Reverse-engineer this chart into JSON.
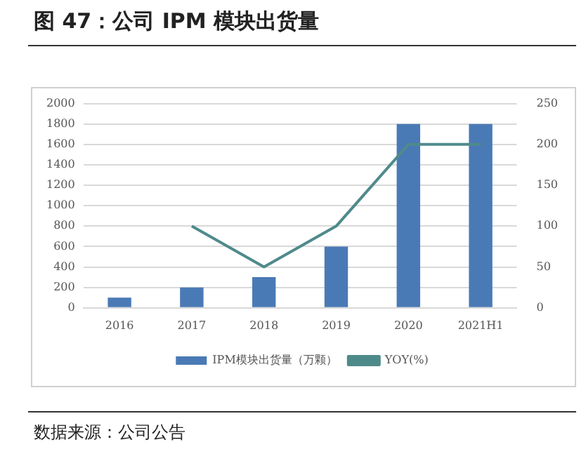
{
  "chart_data": {
    "type": "bar",
    "title": "图 47：公司 IPM 模块出货量",
    "categories": [
      "2016",
      "2017",
      "2018",
      "2019",
      "2020",
      "2021H1"
    ],
    "series": [
      {
        "name": "IPM模块出货量（万颗）",
        "color": "#4a7ab5",
        "values": [
          100,
          200,
          300,
          600,
          1800,
          1800
        ]
      },
      {
        "name": "YOY(%)",
        "type": "line",
        "axis": "y2",
        "color": "#4f8a8b",
        "values": [
          null,
          100,
          50,
          100,
          200,
          200
        ]
      }
    ],
    "ylim": [
      0,
      2000
    ],
    "yticks": [
      0,
      200,
      400,
      600,
      800,
      1000,
      1200,
      1400,
      1600,
      1800,
      2000
    ],
    "y2lim": [
      0,
      250
    ],
    "y2ticks": [
      0,
      50,
      100,
      150,
      200,
      250
    ],
    "grid": "y",
    "legend": "bottom",
    "marker": "none",
    "line_style": "solid",
    "annotations": [
      "数据来源：公司公告"
    ]
  }
}
